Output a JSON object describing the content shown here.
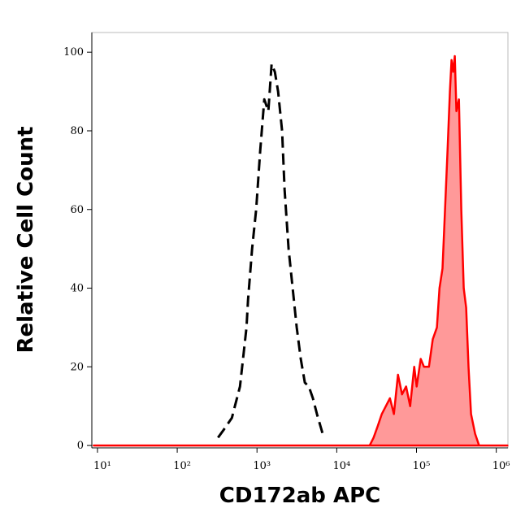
{
  "chart_data": {
    "type": "area",
    "x_label": "CD172ab APC",
    "y_label": "Relative Cell Count",
    "xscale": "log",
    "xlim": [
      8.5,
      1400000
    ],
    "ylim": [
      -0.6,
      105
    ],
    "xticks": [
      {
        "value": 10,
        "label": "10¹"
      },
      {
        "value": 100,
        "label": "10²"
      },
      {
        "value": 1000,
        "label": "10³"
      },
      {
        "value": 10000,
        "label": "10⁴"
      },
      {
        "value": 100000,
        "label": "10⁵"
      },
      {
        "value": 1000000,
        "label": "10⁶"
      }
    ],
    "yticks": [
      0,
      20,
      40,
      60,
      80,
      100
    ],
    "series": [
      {
        "color": "#000000",
        "line_style": "dashed",
        "fill": false,
        "x": [
          325,
          383,
          484,
          612,
          738,
          773,
          869,
          977,
          1099,
          1234,
          1387,
          1524,
          1674,
          1838,
          2065,
          2217,
          2491,
          2801,
          3147,
          3538,
          3978,
          4467,
          5025,
          5649,
          6653
        ],
        "values": [
          2,
          4,
          7,
          15,
          30,
          37,
          50,
          60,
          75,
          88,
          85,
          97,
          95,
          90,
          80,
          65,
          50,
          40,
          30,
          22,
          16,
          15,
          12,
          8,
          3
        ]
      },
      {
        "color": "#ff0000",
        "line_style": "solid",
        "fill": true,
        "x": [
          9,
          25900,
          29000,
          32700,
          36700,
          41300,
          46400,
          52100,
          58600,
          65900,
          74100,
          83300,
          93700,
          100500,
          113000,
          124000,
          143000,
          160000,
          180000,
          194000,
          212000,
          228000,
          245000,
          262000,
          275000,
          288000,
          302000,
          316000,
          340000,
          364000,
          391000,
          419000,
          449000,
          482000,
          542000,
          609000,
          1380000
        ],
        "values": [
          0,
          0,
          2,
          5,
          8,
          10,
          12,
          8,
          18,
          13,
          15,
          10,
          20,
          15,
          22,
          20,
          20,
          27,
          30,
          40,
          45,
          60,
          75,
          90,
          98,
          95,
          99,
          85,
          88,
          60,
          40,
          35,
          20,
          8,
          3,
          0,
          0
        ]
      }
    ]
  }
}
